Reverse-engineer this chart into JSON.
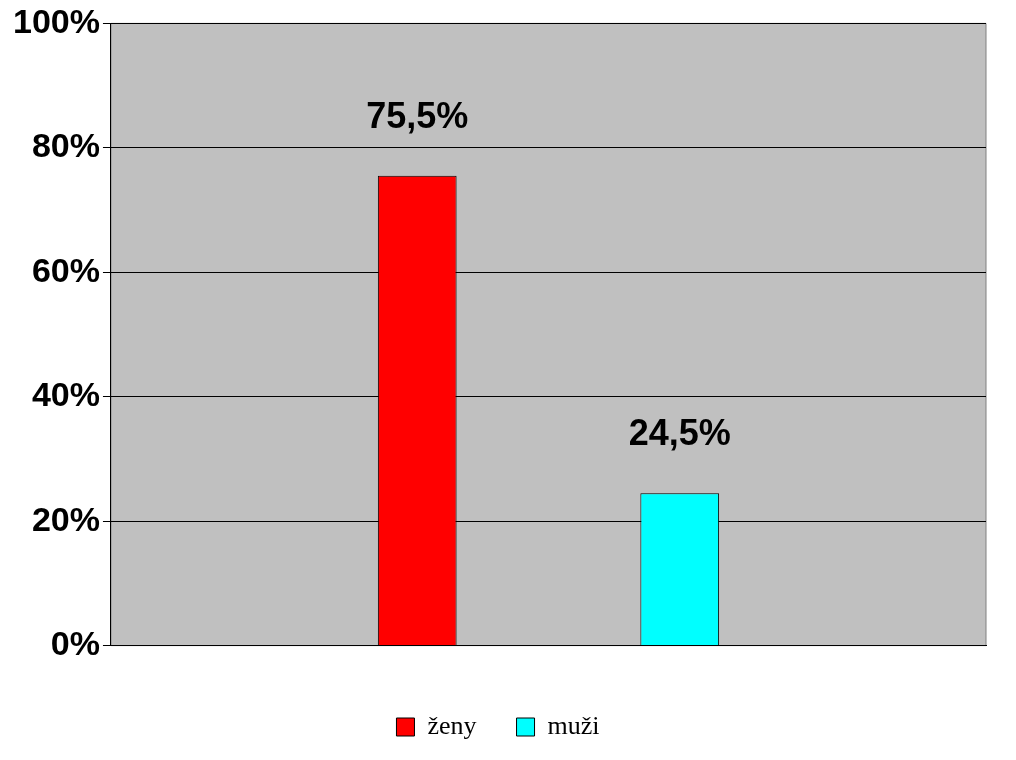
{
  "chart_data": {
    "type": "bar",
    "categories": [
      null
    ],
    "series": [
      {
        "name": "ženy",
        "color": "#ff0000",
        "values": [
          75.5
        ],
        "value_labels": [
          "75,5%"
        ]
      },
      {
        "name": "muži",
        "color": "#00ffff",
        "values": [
          24.5
        ],
        "value_labels": [
          "24,5%"
        ]
      }
    ],
    "ylim": [
      0,
      100
    ],
    "yticks": [
      {
        "value": 0,
        "label": "0%"
      },
      {
        "value": 20,
        "label": "20%"
      },
      {
        "value": 40,
        "label": "40%"
      },
      {
        "value": 60,
        "label": "60%"
      },
      {
        "value": 80,
        "label": "80%"
      },
      {
        "value": 100,
        "label": "100%"
      }
    ],
    "grid": "y",
    "legend": "bottom"
  }
}
